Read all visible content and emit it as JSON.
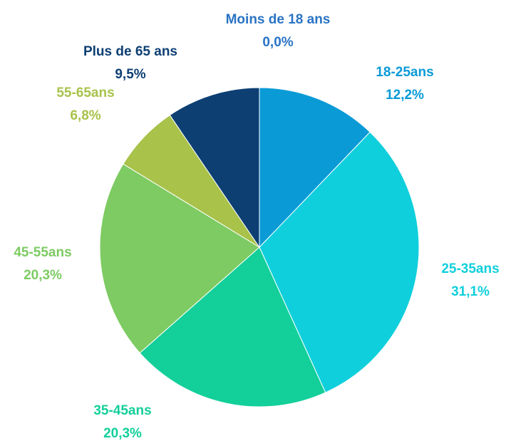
{
  "chart_data": {
    "type": "pie",
    "categories": [
      "Moins de 18 ans",
      "18-25ans",
      "25-35ans",
      "35-45ans",
      "45-55ans",
      "55-65ans",
      "Plus de 65 ans"
    ],
    "values": [
      0.0,
      12.2,
      31.1,
      20.3,
      20.3,
      6.8,
      9.5
    ],
    "value_labels": [
      "0,0%",
      "12,2%",
      "31,1%",
      "20,3%",
      "20,3%",
      "6,8%",
      "9,5%"
    ],
    "colors": [
      "#2a73c4",
      "#0a9ad6",
      "#10cfdc",
      "#13cf9a",
      "#7dcb62",
      "#a8c24a",
      "#0d3f73"
    ]
  }
}
